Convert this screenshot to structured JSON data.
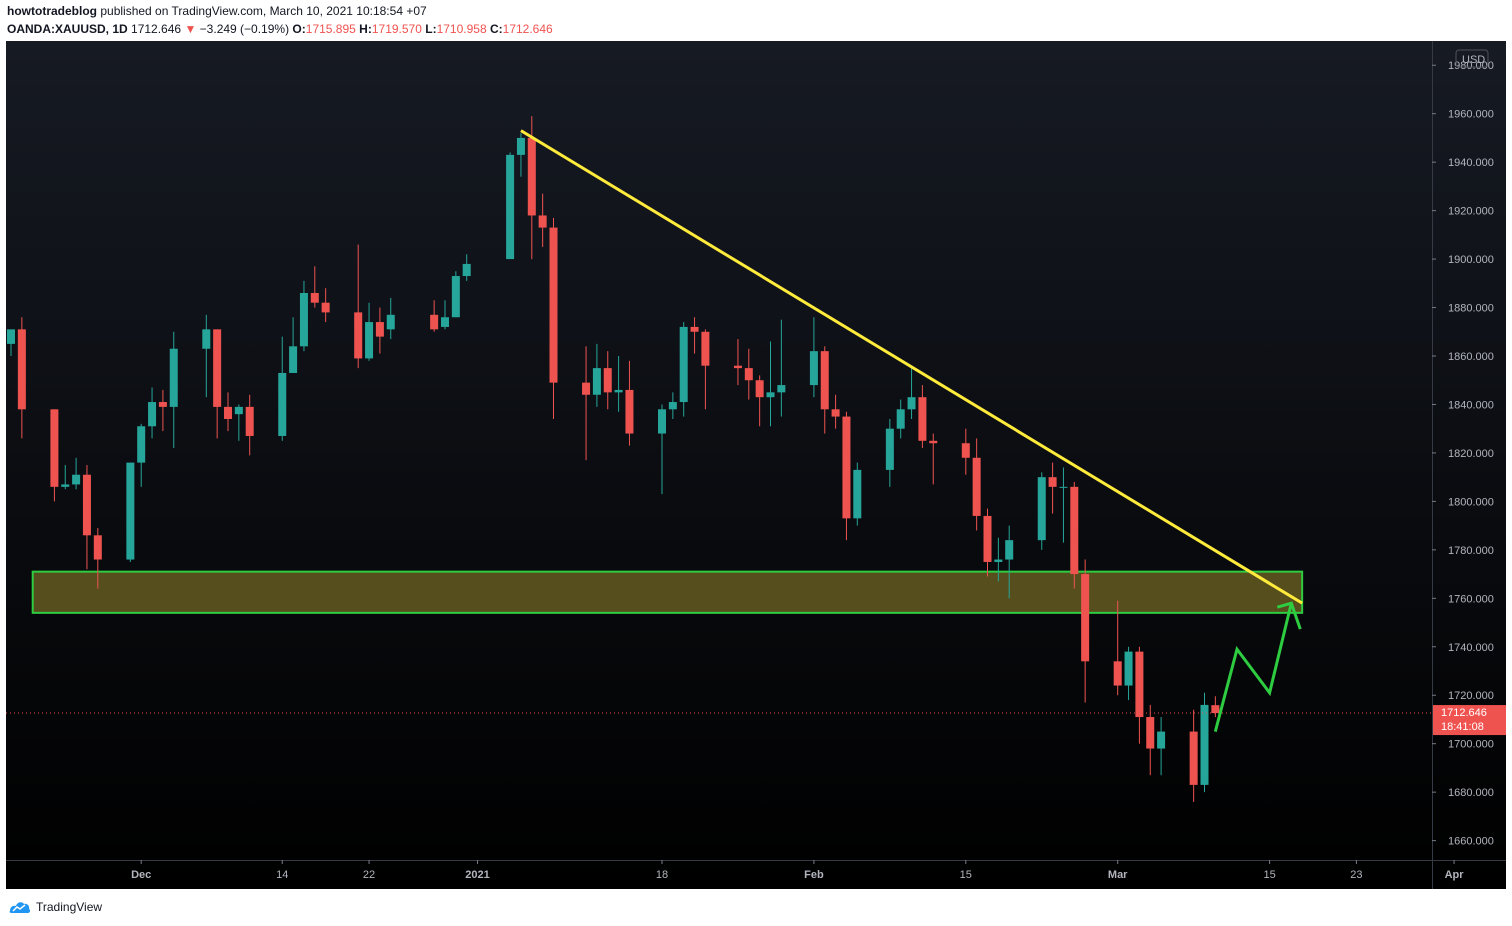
{
  "header": {
    "publisher": "howtotradeblog",
    "published_text": "published on TradingView.com, March 10, 2021 10:18:54 +07",
    "symbol": "OANDA:XAUUSD, 1D",
    "last": "1712.646",
    "change_arrow": "▼",
    "change": "−3.249 (−0.19%)",
    "open_label": "O:",
    "open": "1715.895",
    "high_label": "H:",
    "high": "1719.570",
    "low_label": "L:",
    "low": "1710.958",
    "close_label": "C:",
    "close": "1712.646"
  },
  "price_axis": {
    "currency": "USD",
    "labels": [
      "1980.000",
      "1960.000",
      "1940.000",
      "1920.000",
      "1900.000",
      "1880.000",
      "1860.000",
      "1840.000",
      "1820.000",
      "1800.000",
      "1780.000",
      "1760.000",
      "1740.000",
      "1720.000",
      "1700.000",
      "1680.000",
      "1660.000"
    ],
    "last_price_tag": "1712.646",
    "countdown_tag": "18:41:08"
  },
  "time_axis": {
    "labels": [
      "Dec",
      "14",
      "22",
      "2021",
      "18",
      "Feb",
      "15",
      "Mar",
      "15",
      "23",
      "Apr"
    ]
  },
  "footer": {
    "brand": "TradingView"
  },
  "colors": {
    "up": "#26a69a",
    "down": "#ef5350",
    "trendline": "#ffeb3b",
    "zone_border": "#2ecc40",
    "zone_fill": "#5c5220",
    "projection": "#2ecc40",
    "last_price_tag": "#ef5350"
  },
  "chart_data": {
    "type": "candlestick",
    "symbol": "OANDA:XAUUSD",
    "interval": "1D",
    "ylim": [
      1652,
      1990
    ],
    "candles": [
      {
        "date": "2020-11-19",
        "o": 1865,
        "h": 1870,
        "l": 1860,
        "c": 1871
      },
      {
        "date": "2020-11-20",
        "o": 1871,
        "h": 1876,
        "l": 1826,
        "c": 1838
      },
      {
        "date": "2020-11-23",
        "o": 1838,
        "h": 1838,
        "l": 1800,
        "c": 1806
      },
      {
        "date": "2020-11-24",
        "o": 1806,
        "h": 1815,
        "l": 1805,
        "c": 1807
      },
      {
        "date": "2020-11-25",
        "o": 1807,
        "h": 1818,
        "l": 1805,
        "c": 1811
      },
      {
        "date": "2020-11-26",
        "o": 1811,
        "h": 1815,
        "l": 1772,
        "c": 1786
      },
      {
        "date": "2020-11-27",
        "o": 1786,
        "h": 1789,
        "l": 1764,
        "c": 1776
      },
      {
        "date": "2020-11-30",
        "o": 1776,
        "h": 1816,
        "l": 1775,
        "c": 1816
      },
      {
        "date": "2020-12-01",
        "o": 1816,
        "h": 1832,
        "l": 1806,
        "c": 1831
      },
      {
        "date": "2020-12-02",
        "o": 1831,
        "h": 1847,
        "l": 1826,
        "c": 1841
      },
      {
        "date": "2020-12-03",
        "o": 1841,
        "h": 1846,
        "l": 1829,
        "c": 1839
      },
      {
        "date": "2020-12-04",
        "o": 1839,
        "h": 1870,
        "l": 1822,
        "c": 1863
      },
      {
        "date": "2020-12-07",
        "o": 1863,
        "h": 1877,
        "l": 1843,
        "c": 1871
      },
      {
        "date": "2020-12-08",
        "o": 1871,
        "h": 1871,
        "l": 1826,
        "c": 1839
      },
      {
        "date": "2020-12-09",
        "o": 1839,
        "h": 1845,
        "l": 1829,
        "c": 1834
      },
      {
        "date": "2020-12-10",
        "o": 1836,
        "h": 1840,
        "l": 1825,
        "c": 1839
      },
      {
        "date": "2020-12-11",
        "o": 1839,
        "h": 1844,
        "l": 1819,
        "c": 1827
      },
      {
        "date": "2020-12-14",
        "o": 1827,
        "h": 1868,
        "l": 1825,
        "c": 1853
      },
      {
        "date": "2020-12-15",
        "o": 1853,
        "h": 1876,
        "l": 1853,
        "c": 1864
      },
      {
        "date": "2020-12-16",
        "o": 1864,
        "h": 1891,
        "l": 1862,
        "c": 1886
      },
      {
        "date": "2020-12-17",
        "o": 1886,
        "h": 1897,
        "l": 1880,
        "c": 1882
      },
      {
        "date": "2020-12-18",
        "o": 1882,
        "h": 1888,
        "l": 1874,
        "c": 1878
      },
      {
        "date": "2020-12-21",
        "o": 1878,
        "h": 1906,
        "l": 1855,
        "c": 1859
      },
      {
        "date": "2020-12-22",
        "o": 1859,
        "h": 1882,
        "l": 1858,
        "c": 1874
      },
      {
        "date": "2020-12-23",
        "o": 1874,
        "h": 1880,
        "l": 1861,
        "c": 1868
      },
      {
        "date": "2020-12-24",
        "o": 1871,
        "h": 1884,
        "l": 1867,
        "c": 1877
      },
      {
        "date": "2020-12-28",
        "o": 1877,
        "h": 1883,
        "l": 1870,
        "c": 1871
      },
      {
        "date": "2020-12-29",
        "o": 1872,
        "h": 1883,
        "l": 1871,
        "c": 1876
      },
      {
        "date": "2020-12-30",
        "o": 1876,
        "h": 1895,
        "l": 1876,
        "c": 1893
      },
      {
        "date": "2020-12-31",
        "o": 1893,
        "h": 1902,
        "l": 1891,
        "c": 1898
      },
      {
        "date": "2021-01-04",
        "o": 1900,
        "h": 1944,
        "l": 1900,
        "c": 1943
      },
      {
        "date": "2021-01-05",
        "o": 1943,
        "h": 1952,
        "l": 1934,
        "c": 1950
      },
      {
        "date": "2021-01-06",
        "o": 1950,
        "h": 1959,
        "l": 1900,
        "c": 1918
      },
      {
        "date": "2021-01-07",
        "o": 1918,
        "h": 1927,
        "l": 1905,
        "c": 1913
      },
      {
        "date": "2021-01-08",
        "o": 1913,
        "h": 1917,
        "l": 1834,
        "c": 1849
      },
      {
        "date": "2021-01-11",
        "o": 1849,
        "h": 1864,
        "l": 1817,
        "c": 1844
      },
      {
        "date": "2021-01-12",
        "o": 1844,
        "h": 1865,
        "l": 1839,
        "c": 1855
      },
      {
        "date": "2021-01-13",
        "o": 1855,
        "h": 1862,
        "l": 1838,
        "c": 1845
      },
      {
        "date": "2021-01-14",
        "o": 1845,
        "h": 1860,
        "l": 1837,
        "c": 1846
      },
      {
        "date": "2021-01-15",
        "o": 1846,
        "h": 1858,
        "l": 1823,
        "c": 1828
      },
      {
        "date": "2021-01-18",
        "o": 1828,
        "h": 1840,
        "l": 1803,
        "c": 1838
      },
      {
        "date": "2021-01-19",
        "o": 1838,
        "h": 1845,
        "l": 1834,
        "c": 1841
      },
      {
        "date": "2021-01-20",
        "o": 1841,
        "h": 1874,
        "l": 1835,
        "c": 1872
      },
      {
        "date": "2021-01-21",
        "o": 1872,
        "h": 1876,
        "l": 1861,
        "c": 1870
      },
      {
        "date": "2021-01-22",
        "o": 1870,
        "h": 1871,
        "l": 1838,
        "c": 1856
      },
      {
        "date": "2021-01-25",
        "o": 1856,
        "h": 1867,
        "l": 1848,
        "c": 1855
      },
      {
        "date": "2021-01-26",
        "o": 1855,
        "h": 1863,
        "l": 1842,
        "c": 1850
      },
      {
        "date": "2021-01-27",
        "o": 1850,
        "h": 1852,
        "l": 1831,
        "c": 1843
      },
      {
        "date": "2021-01-28",
        "o": 1843,
        "h": 1866,
        "l": 1831,
        "c": 1845
      },
      {
        "date": "2021-01-29",
        "o": 1845,
        "h": 1875,
        "l": 1835,
        "c": 1848
      },
      {
        "date": "2021-02-01",
        "o": 1848,
        "h": 1876,
        "l": 1843,
        "c": 1862
      },
      {
        "date": "2021-02-02",
        "o": 1862,
        "h": 1864,
        "l": 1828,
        "c": 1838
      },
      {
        "date": "2021-02-03",
        "o": 1838,
        "h": 1844,
        "l": 1830,
        "c": 1835
      },
      {
        "date": "2021-02-04",
        "o": 1835,
        "h": 1837,
        "l": 1784,
        "c": 1793
      },
      {
        "date": "2021-02-05",
        "o": 1793,
        "h": 1816,
        "l": 1790,
        "c": 1813
      },
      {
        "date": "2021-02-08",
        "o": 1813,
        "h": 1834,
        "l": 1806,
        "c": 1830
      },
      {
        "date": "2021-02-09",
        "o": 1830,
        "h": 1842,
        "l": 1826,
        "c": 1838
      },
      {
        "date": "2021-02-10",
        "o": 1838,
        "h": 1855,
        "l": 1834,
        "c": 1843
      },
      {
        "date": "2021-02-11",
        "o": 1843,
        "h": 1848,
        "l": 1822,
        "c": 1825
      },
      {
        "date": "2021-02-12",
        "o": 1825,
        "h": 1828,
        "l": 1807,
        "c": 1824
      },
      {
        "date": "2021-02-15",
        "o": 1824,
        "h": 1830,
        "l": 1811,
        "c": 1818
      },
      {
        "date": "2021-02-16",
        "o": 1818,
        "h": 1826,
        "l": 1788,
        "c": 1794
      },
      {
        "date": "2021-02-17",
        "o": 1794,
        "h": 1797,
        "l": 1769,
        "c": 1775
      },
      {
        "date": "2021-02-18",
        "o": 1775,
        "h": 1785,
        "l": 1767,
        "c": 1776
      },
      {
        "date": "2021-02-19",
        "o": 1776,
        "h": 1790,
        "l": 1760,
        "c": 1784
      },
      {
        "date": "2021-02-22",
        "o": 1784,
        "h": 1812,
        "l": 1780,
        "c": 1810
      },
      {
        "date": "2021-02-23",
        "o": 1810,
        "h": 1816,
        "l": 1795,
        "c": 1806
      },
      {
        "date": "2021-02-24",
        "o": 1806,
        "h": 1814,
        "l": 1783,
        "c": 1806
      },
      {
        "date": "2021-02-25",
        "o": 1806,
        "h": 1808,
        "l": 1764,
        "c": 1770
      },
      {
        "date": "2021-02-26",
        "o": 1770,
        "h": 1776,
        "l": 1717,
        "c": 1734
      },
      {
        "date": "2021-03-01",
        "o": 1734,
        "h": 1759,
        "l": 1720,
        "c": 1724
      },
      {
        "date": "2021-03-02",
        "o": 1724,
        "h": 1740,
        "l": 1718,
        "c": 1738
      },
      {
        "date": "2021-03-03",
        "o": 1738,
        "h": 1740,
        "l": 1700,
        "c": 1711
      },
      {
        "date": "2021-03-04",
        "o": 1711,
        "h": 1716,
        "l": 1687,
        "c": 1698
      },
      {
        "date": "2021-03-05",
        "o": 1698,
        "h": 1711,
        "l": 1687,
        "c": 1705
      },
      {
        "date": "2021-03-08",
        "o": 1705,
        "h": 1714,
        "l": 1676,
        "c": 1683
      },
      {
        "date": "2021-03-09",
        "o": 1683,
        "h": 1721,
        "l": 1680,
        "c": 1716
      },
      {
        "date": "2021-03-10",
        "o": 1715.895,
        "h": 1719.57,
        "l": 1710.958,
        "c": 1712.646
      }
    ],
    "trendline": {
      "from": {
        "date": "2021-01-05",
        "price": 1953
      },
      "to": {
        "date": "2021-03-18",
        "price": 1758
      }
    },
    "zone": {
      "from_date": "2020-11-21",
      "to_date": "2021-03-18",
      "top": 1771,
      "bottom": 1754
    },
    "projection": [
      {
        "date": "2021-03-10",
        "price": 1705
      },
      {
        "date": "2021-03-12",
        "price": 1739
      },
      {
        "date": "2021-03-15",
        "price": 1721
      },
      {
        "date": "2021-03-17",
        "price": 1758
      }
    ],
    "last_price": 1712.646
  }
}
